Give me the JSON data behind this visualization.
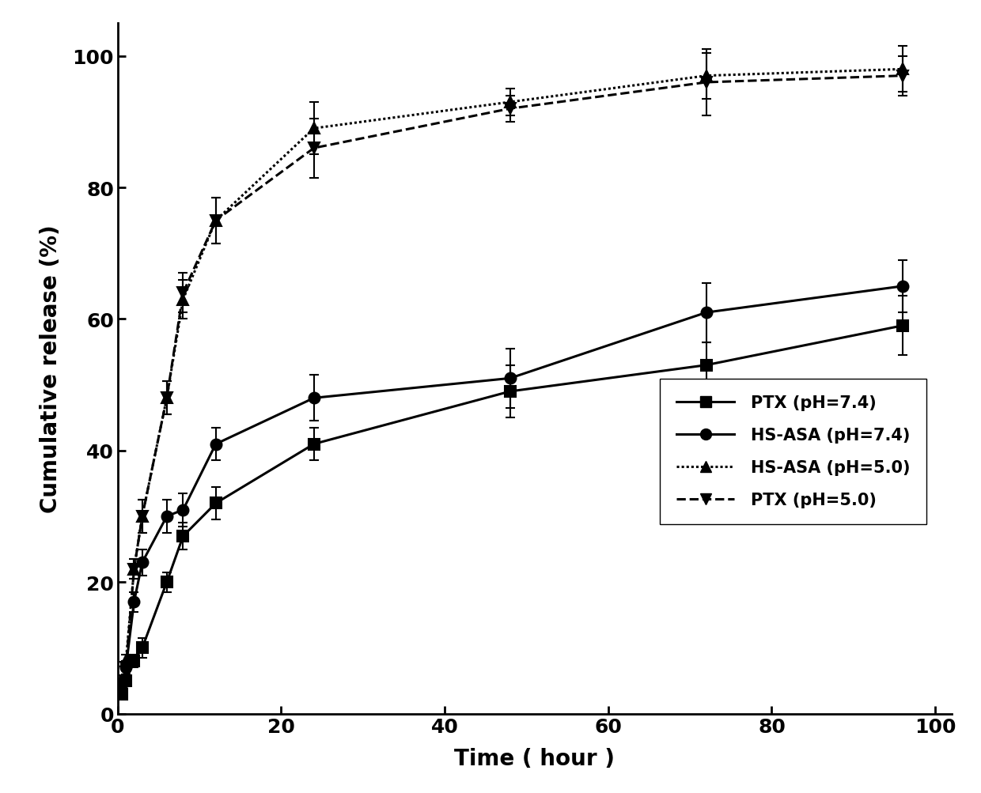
{
  "ptx_74_x": [
    0.5,
    1,
    2,
    3,
    6,
    8,
    12,
    24,
    48,
    72,
    96
  ],
  "ptx_74_y": [
    3,
    5,
    8,
    10,
    20,
    27,
    32,
    41,
    49,
    53,
    59
  ],
  "ptx_74_err": [
    0.5,
    0.8,
    1.0,
    1.5,
    1.5,
    2.0,
    2.5,
    2.5,
    4.0,
    3.5,
    4.5
  ],
  "hsasa_74_x": [
    0.5,
    1,
    2,
    3,
    6,
    8,
    12,
    24,
    48,
    72,
    96
  ],
  "hsasa_74_y": [
    4.5,
    7,
    17,
    23,
    30,
    31,
    41,
    48,
    51,
    61,
    65
  ],
  "hsasa_74_err": [
    0.5,
    1.0,
    1.5,
    2.0,
    2.5,
    2.5,
    2.5,
    3.5,
    4.5,
    4.5,
    4.0
  ],
  "hsasa_50_x": [
    0.5,
    1,
    2,
    3,
    6,
    8,
    12,
    24,
    48,
    72,
    96
  ],
  "hsasa_50_y": [
    5,
    8,
    22,
    30,
    48,
    63,
    75,
    89,
    93,
    97,
    98
  ],
  "hsasa_50_err": [
    0.8,
    1.0,
    1.5,
    2.5,
    2.5,
    3.0,
    3.5,
    4.0,
    2.0,
    3.5,
    3.5
  ],
  "ptx_50_x": [
    0.5,
    1,
    2,
    3,
    6,
    8,
    12,
    24,
    48,
    72,
    96
  ],
  "ptx_50_y": [
    4.5,
    7,
    22,
    30,
    48,
    64,
    75,
    86,
    92,
    96,
    97
  ],
  "ptx_50_err": [
    0.8,
    1.0,
    1.5,
    2.5,
    2.5,
    3.0,
    3.5,
    4.5,
    2.0,
    5.0,
    3.0
  ],
  "xlabel": "Time ( hour )",
  "ylabel": "Cumulative release (%)",
  "xlim": [
    0,
    102
  ],
  "ylim": [
    0,
    105
  ],
  "xticks": [
    0,
    20,
    40,
    60,
    80,
    100
  ],
  "yticks": [
    0,
    20,
    40,
    60,
    80,
    100
  ],
  "legend_labels": [
    "PTX (pH=7.4)",
    "HS-ASA (pH=7.4)",
    "HS-ASA (pH=5.0)",
    "PTX (pH=5.0)"
  ],
  "color": "#000000",
  "background": "#ffffff",
  "xlabel_fontsize": 20,
  "ylabel_fontsize": 20,
  "tick_fontsize": 18,
  "legend_fontsize": 15
}
